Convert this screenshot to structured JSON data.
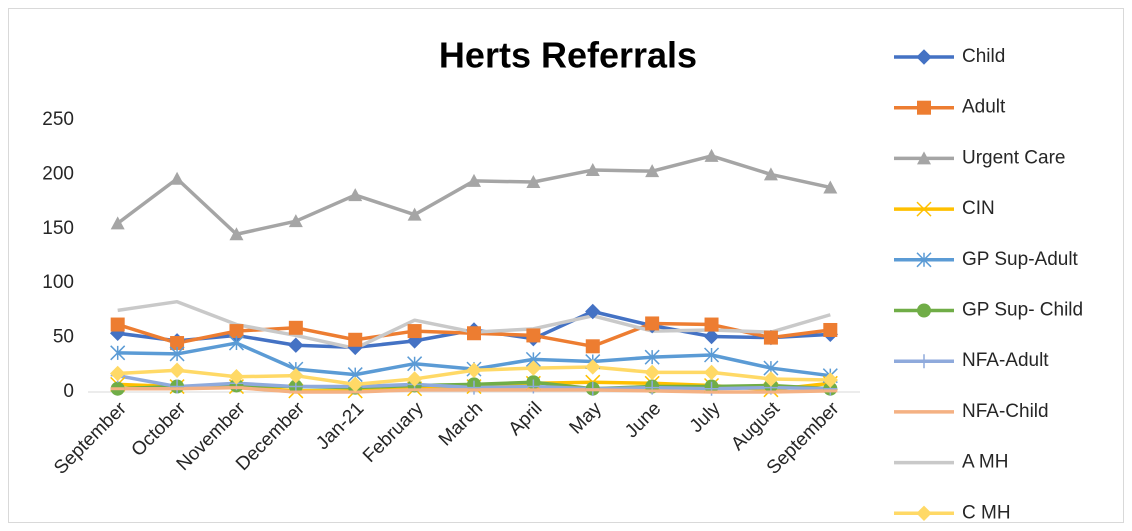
{
  "chart_data": {
    "type": "line",
    "title": "Herts Referrals",
    "categories": [
      "September",
      "October",
      "November",
      "December",
      "Jan-21",
      "February",
      "March",
      "April",
      "May",
      "June",
      "July",
      "August",
      "September"
    ],
    "ylim": [
      0,
      250
    ],
    "yticks": [
      0,
      50,
      100,
      150,
      200,
      250
    ],
    "grid": false,
    "legend": "right",
    "series": [
      {
        "name": "Child",
        "color": "#4472c4",
        "marker": "diamond",
        "values": [
          54,
          47,
          52,
          43,
          41,
          47,
          57,
          49,
          74,
          61,
          51,
          50,
          53
        ]
      },
      {
        "name": "Adult",
        "color": "#ed7d31",
        "marker": "square",
        "values": [
          62,
          45,
          56,
          59,
          48,
          56,
          54,
          52,
          42,
          63,
          62,
          50,
          57
        ]
      },
      {
        "name": "Urgent Care",
        "color": "#a5a5a5",
        "marker": "triangle",
        "values": [
          155,
          196,
          145,
          157,
          181,
          163,
          194,
          193,
          204,
          203,
          217,
          200,
          188
        ]
      },
      {
        "name": "CIN",
        "color": "#ffc000",
        "marker": "x",
        "values": [
          7,
          5,
          5,
          1,
          1,
          3,
          5,
          8,
          9,
          8,
          6,
          2,
          8
        ]
      },
      {
        "name": "GP Sup-Adult",
        "color": "#5b9bd5",
        "marker": "star",
        "values": [
          36,
          35,
          45,
          21,
          16,
          26,
          21,
          30,
          28,
          32,
          34,
          22,
          15
        ]
      },
      {
        "name": "GP Sup- Child",
        "color": "#70ad47",
        "marker": "circle",
        "values": [
          3,
          5,
          6,
          5,
          4,
          6,
          7,
          9,
          3,
          5,
          5,
          6,
          3
        ]
      },
      {
        "name": "NFA-Adult",
        "color": "#8faadc",
        "marker": "plus",
        "values": [
          15,
          5,
          8,
          5,
          5,
          7,
          4,
          5,
          3,
          4,
          3,
          4,
          3
        ]
      },
      {
        "name": "NFA-Child",
        "color": "#f4b183",
        "marker": "dash",
        "values": [
          3,
          3,
          4,
          0,
          0,
          2,
          2,
          2,
          2,
          1,
          0,
          0,
          1
        ]
      },
      {
        "name": "A MH",
        "color": "#c9c9c9",
        "marker": "none",
        "values": [
          75,
          83,
          62,
          52,
          40,
          66,
          55,
          58,
          70,
          56,
          57,
          55,
          71
        ]
      },
      {
        "name": "C MH",
        "color": "#ffd966",
        "marker": "diamond",
        "values": [
          17,
          20,
          14,
          15,
          7,
          12,
          20,
          22,
          23,
          18,
          18,
          12,
          11
        ]
      }
    ]
  }
}
